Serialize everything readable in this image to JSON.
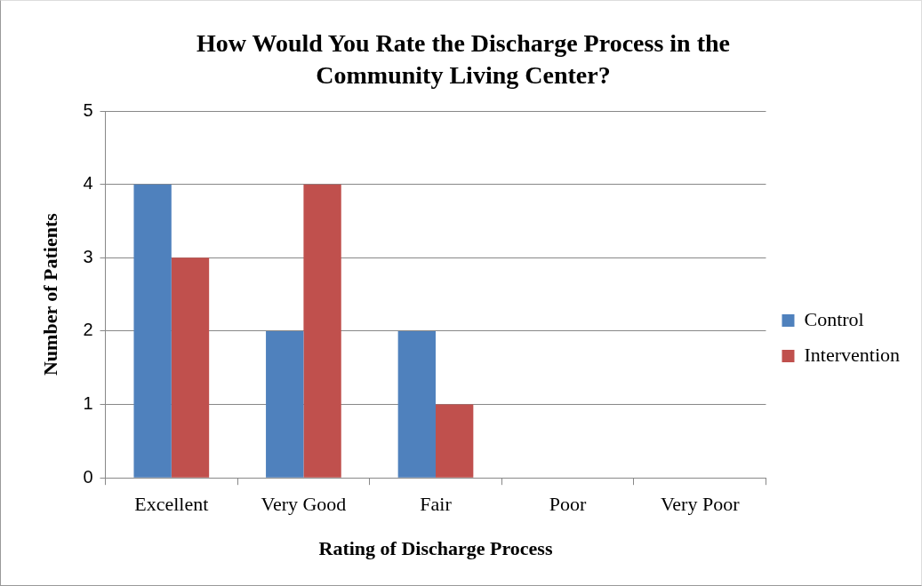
{
  "chart_data": {
    "type": "bar",
    "title": "How Would You Rate the Discharge Process in the Community Living Center?",
    "xlabel": "Rating of Discharge Process",
    "ylabel": "Number of Patients",
    "categories": [
      "Excellent",
      "Very Good",
      "Fair",
      "Poor",
      "Very Poor"
    ],
    "series": [
      {
        "name": "Control",
        "color": "#4f81bd",
        "values": [
          4,
          2,
          2,
          0,
          0
        ]
      },
      {
        "name": "Intervention",
        "color": "#c0504d",
        "values": [
          3,
          4,
          1,
          0,
          0
        ]
      }
    ],
    "ylim": [
      0,
      5
    ],
    "yticks": [
      0,
      1,
      2,
      3,
      4,
      5
    ],
    "grid": "y",
    "legend": "right"
  }
}
